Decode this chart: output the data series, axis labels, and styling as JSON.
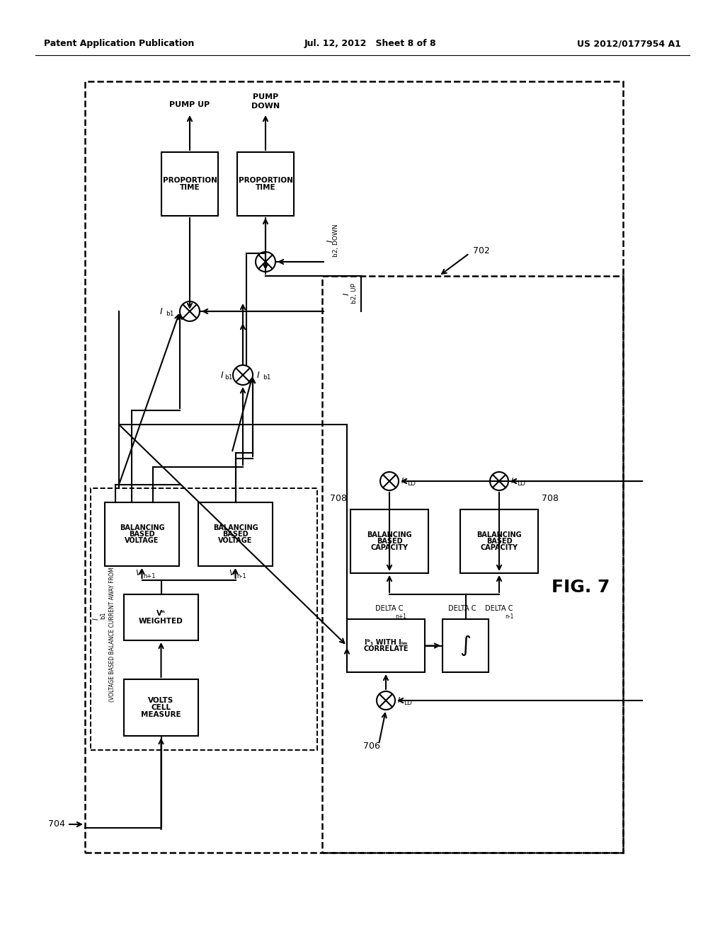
{
  "header_left": "Patent Application Publication",
  "header_mid": "Jul. 12, 2012   Sheet 8 of 8",
  "header_right": "US 2012/0177954 A1",
  "fig_label": "FIG. 7",
  "bg_color": "#ffffff"
}
